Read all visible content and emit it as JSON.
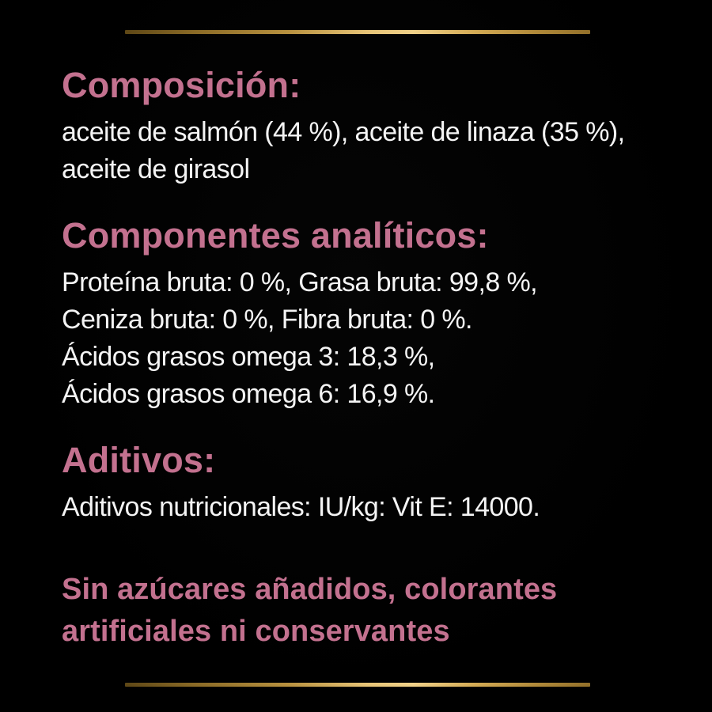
{
  "panel": {
    "background_color": "#000000",
    "type": "product-ingredients-label",
    "language": "es"
  },
  "colors": {
    "heading_pink": "#c3718f",
    "body_white": "#f4f4f4",
    "gold_dark": "#5e4716",
    "gold_light": "#f0d189"
  },
  "sections": [
    {
      "heading": "Composición:",
      "lines": [
        "aceite de salmón (44 %), aceite de linaza (35 %),",
        "aceite de girasol"
      ]
    },
    {
      "heading": "Componentes analíticos:",
      "lines": [
        "Proteína bruta: 0 %, Grasa bruta: 99,8 %,",
        "Ceniza bruta: 0 %, Fibra bruta: 0 %.",
        "Ácidos grasos omega 3: 18,3 %,",
        "Ácidos grasos omega 6: 16,9 %."
      ]
    },
    {
      "heading": "Aditivos:",
      "lines": [
        "Aditivos nutricionales: IU/kg: Vit E: 14000."
      ]
    }
  ],
  "tagline": {
    "lines": [
      "Sin azúcares añadidos, colorantes",
      "artificiales ni conservantes"
    ]
  }
}
